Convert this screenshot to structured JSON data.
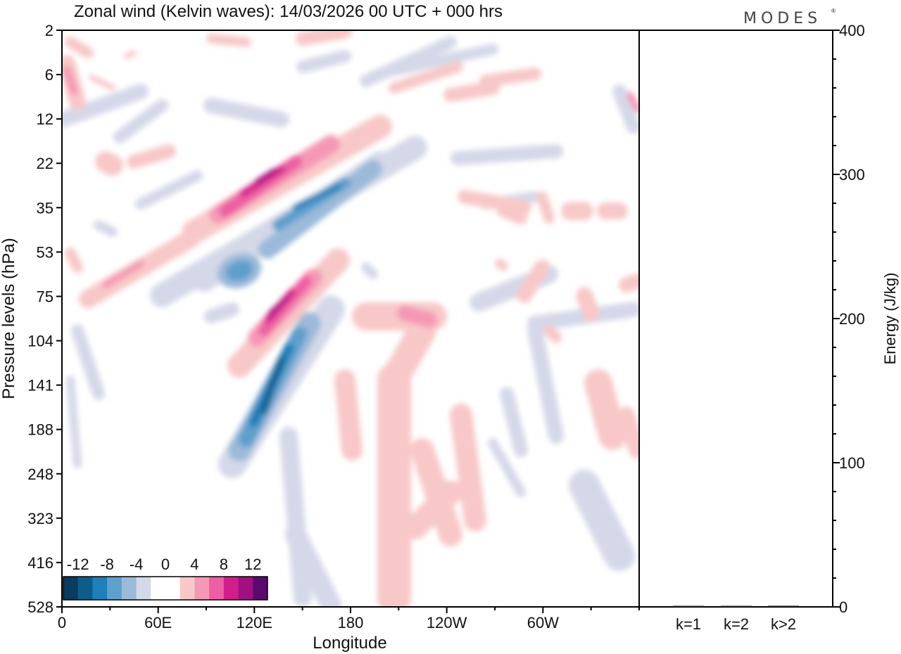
{
  "chart_data": [
    {
      "type": "heatmap",
      "title": "Zonal wind (Kelvin waves):  14/03/2026  00 UTC  + 000 hrs",
      "xlabel": "Longitude",
      "ylabel": "Pressure levels (hPa)",
      "x_tick_labels": [
        "0",
        "60E",
        "120E",
        "180",
        "120W",
        "60W"
      ],
      "x_tick_values_deg": [
        0,
        60,
        120,
        180,
        240,
        300
      ],
      "x_range_deg": [
        0,
        360
      ],
      "y_tick_labels": [
        "2",
        "6",
        "12",
        "22",
        "35",
        "53",
        "75",
        "104",
        "141",
        "188",
        "248",
        "323",
        "416",
        "528"
      ],
      "colorbar": {
        "tick_labels": [
          "-12",
          "-8",
          "-4",
          "0",
          "4",
          "8",
          "12"
        ],
        "colors": [
          "#0b3b5e",
          "#0d5d8c",
          "#1f7fb8",
          "#5f9fcc",
          "#9bb9d9",
          "#d4d8e8",
          "#ffffff",
          "#ffffff",
          "#f8c8c8",
          "#f598b5",
          "#ee5ea2",
          "#d01f8a",
          "#a01080",
          "#5a0a6e"
        ]
      },
      "features": [
        {
          "label": "positive anomaly",
          "lon": 95,
          "level_index": 3.5,
          "peak": 12
        },
        {
          "label": "negative anomaly",
          "lon": 115,
          "level_index": 4.3,
          "peak": -8
        },
        {
          "label": "positive anomaly",
          "lon": 125,
          "level_index": 6.3,
          "peak": 12
        },
        {
          "label": "negative anomaly",
          "lon": 125,
          "level_index": 8.8,
          "peak": -12
        },
        {
          "label": "positive anomaly",
          "lon": 210,
          "level_index": 11.0,
          "peak": 4
        },
        {
          "label": "negative anomaly",
          "lon": 335,
          "level_index": 11.2,
          "peak": -4
        }
      ]
    },
    {
      "type": "bar",
      "ylabel": "Energy (J/kg)",
      "categories": [
        "k=1",
        "k=2",
        "k>2"
      ],
      "values": [
        0.5,
        0.5,
        0.8
      ],
      "ylim": [
        0,
        400
      ],
      "y_tick_labels": [
        "0",
        "100",
        "200",
        "300",
        "400"
      ]
    }
  ],
  "logo": {
    "text": "MODES"
  }
}
